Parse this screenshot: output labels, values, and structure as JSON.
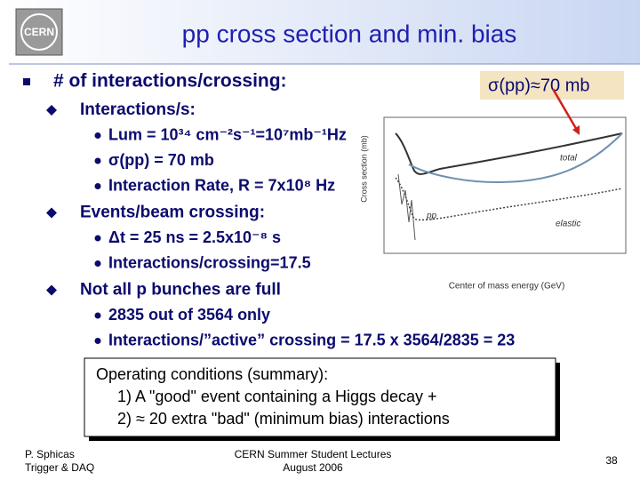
{
  "header": {
    "logo": "CERN",
    "title": "pp cross section and min. bias"
  },
  "body": {
    "heading": "# of interactions/crossing:",
    "items": [
      {
        "text": "Interactions/s:",
        "subitems": [
          "Lum = 10³⁴ cm⁻²s⁻¹=10⁷mb⁻¹Hz",
          "σ(pp) = 70 mb",
          "Interaction Rate, R = 7x10⁸ Hz"
        ]
      },
      {
        "text": "Events/beam crossing:",
        "subitems": [
          "Δt = 25 ns = 2.5x10⁻⁸ s",
          "Interactions/crossing=17.5"
        ]
      },
      {
        "text": "Not all p bunches are full",
        "subitems": [
          "2835 out of 3564 only",
          "Interactions/”active” crossing = 17.5 x 3564/2835 = 23"
        ]
      }
    ]
  },
  "callout": "σ(pp)≈70 mb",
  "figure": {
    "y_label": "Cross section (mb)",
    "x_label": "Center of mass energy (GeV)",
    "curve_labels": [
      "total",
      "pp",
      "elastic"
    ]
  },
  "summary": {
    "title": "Operating conditions (summary):",
    "lines": [
      "1)  A \"good\" event containing a  Higgs decay +",
      "2)  ≈ 20 extra \"bad\" (minimum bias) interactions"
    ]
  },
  "footer": {
    "author": "P. Sphicas",
    "course": "Trigger & DAQ",
    "event": "CERN Summer Student Lectures",
    "date": "August 2006",
    "page": "38"
  }
}
